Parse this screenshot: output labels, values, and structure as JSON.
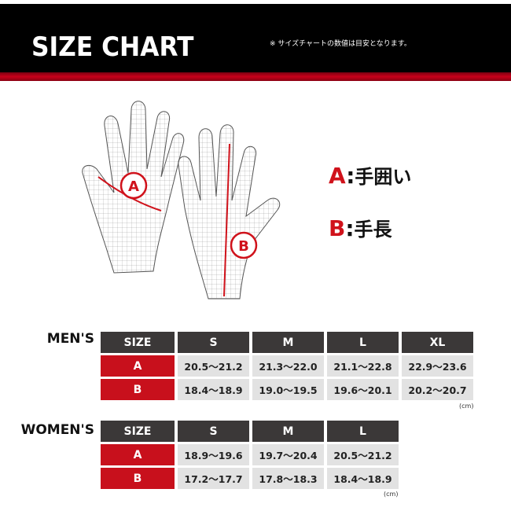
{
  "header": {
    "title": "SIZE CHART",
    "note": "※ サイズチャートの数値は目安となります。"
  },
  "legend": [
    {
      "key": "A",
      "sep": ":",
      "label": "手囲い"
    },
    {
      "key": "B",
      "sep": ":",
      "label": "手長"
    }
  ],
  "illustration": {
    "marker_a": "A",
    "marker_b": "B"
  },
  "mens": {
    "label": "MEN'S",
    "headers": [
      "SIZE",
      "S",
      "M",
      "L",
      "XL"
    ],
    "rows": [
      {
        "key": "A",
        "values": [
          "20.5～21.2",
          "21.3～22.0",
          "21.1～22.8",
          "22.9～23.6"
        ]
      },
      {
        "key": "B",
        "values": [
          "18.4～18.9",
          "19.0～19.5",
          "19.6～20.1",
          "20.2～20.7"
        ]
      }
    ],
    "unit": "(cm)"
  },
  "womens": {
    "label": "WOMEN'S",
    "headers": [
      "SIZE",
      "S",
      "M",
      "L"
    ],
    "rows": [
      {
        "key": "A",
        "values": [
          "18.9～19.6",
          "19.7～20.4",
          "20.5～21.2"
        ]
      },
      {
        "key": "B",
        "values": [
          "17.2～17.7",
          "17.8～18.3",
          "18.4～18.9"
        ]
      }
    ],
    "unit": "(cm)"
  },
  "colors": {
    "accent": "#c8101c",
    "header_cell": "#3b3838",
    "value_cell": "#e2e2e2"
  }
}
